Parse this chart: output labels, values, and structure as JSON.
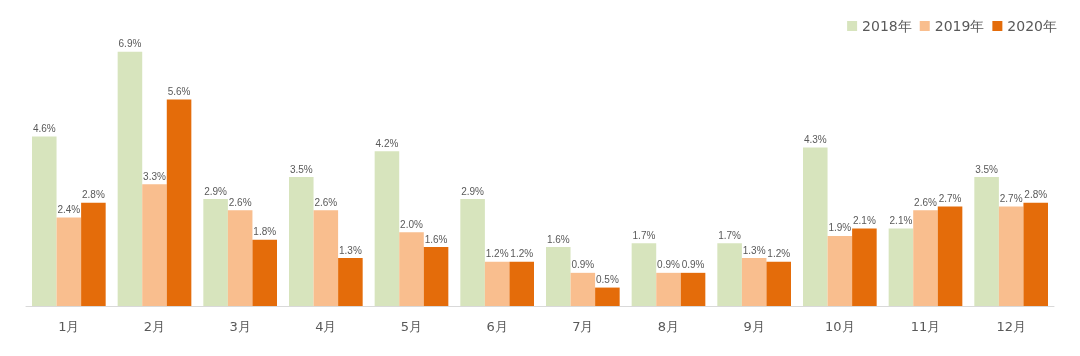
{
  "chart_data": {
    "type": "bar",
    "categories": [
      "1月",
      "2月",
      "3月",
      "4月",
      "5月",
      "6月",
      "7月",
      "8月",
      "9月",
      "10月",
      "11月",
      "12月"
    ],
    "series": [
      {
        "name": "2018年",
        "color": "#d7e4bd",
        "values": [
          4.6,
          6.9,
          2.9,
          3.5,
          4.2,
          2.9,
          1.6,
          1.7,
          1.7,
          4.3,
          2.1,
          3.5
        ],
        "value_labels": [
          "4.6%",
          "6.9%",
          "2.9%",
          "3.5%",
          "4.2%",
          "2.9%",
          "1.6%",
          "1.7%",
          "1.7%",
          "4.3%",
          "2.1%",
          "3.5%"
        ]
      },
      {
        "name": "2019年",
        "color": "#f9be8e",
        "values": [
          2.4,
          3.3,
          2.6,
          2.6,
          2.0,
          1.2,
          0.9,
          0.9,
          1.3,
          1.9,
          2.6,
          2.7
        ],
        "value_labels": [
          "2.4%",
          "3.3%",
          "2.6%",
          "2.6%",
          "2.0%",
          "1.2%",
          "0.9%",
          "0.9%",
          "1.3%",
          "1.9%",
          "2.6%",
          "2.7%"
        ]
      },
      {
        "name": "2020年",
        "color": "#e46c0a",
        "values": [
          2.8,
          5.6,
          1.8,
          1.3,
          1.6,
          1.2,
          0.5,
          0.9,
          1.2,
          2.1,
          2.7,
          2.8
        ],
        "value_labels": [
          "2.8%",
          "5.6%",
          "1.8%",
          "1.3%",
          "1.6%",
          "1.2%",
          "0.5%",
          "0.9%",
          "1.2%",
          "2.1%",
          "2.7%",
          "2.8%"
        ]
      }
    ],
    "legend": "top right",
    "tick_labels": "x"
  }
}
